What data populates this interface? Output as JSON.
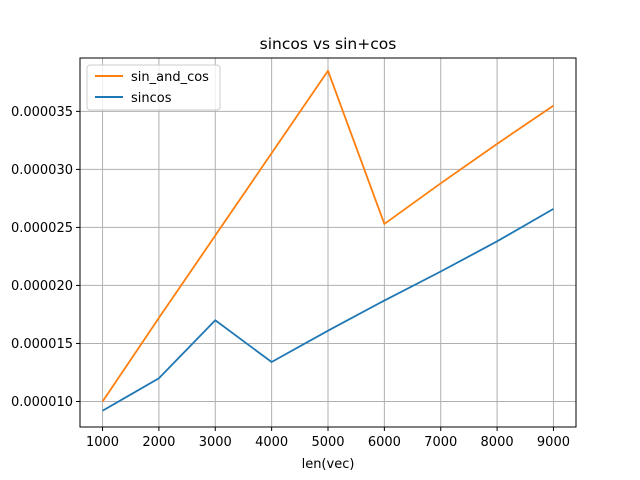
{
  "chart_data": {
    "type": "line",
    "title": "sincos vs sin+cos",
    "xlabel": "len(vec)",
    "ylabel": "",
    "grid": true,
    "legend_position": "top-left",
    "x": [
      1000,
      2000,
      3000,
      4000,
      5000,
      6000,
      7000,
      8000,
      9000
    ],
    "xticks": [
      "1000",
      "2000",
      "3000",
      "4000",
      "5000",
      "6000",
      "7000",
      "8000",
      "9000"
    ],
    "yticks": [
      1e-05,
      1.5e-05,
      2e-05,
      2.5e-05,
      3e-05,
      3.5e-05
    ],
    "yticklabels": [
      "0.000010",
      "0.000015",
      "0.000020",
      "0.000025",
      "0.000030",
      "0.000035"
    ],
    "xlim": [
      600,
      9400
    ],
    "ylim": [
      7.8e-06,
      3.96e-05
    ],
    "series": [
      {
        "name": "sin_and_cos",
        "color": "#ff7f0e",
        "values": [
          1e-05,
          1.72e-05,
          2.43e-05,
          3.14e-05,
          3.85e-05,
          2.53e-05,
          2.88e-05,
          3.22e-05,
          3.55e-05
        ]
      },
      {
        "name": "sincos",
        "color": "#1f77b4",
        "values": [
          9.2e-06,
          1.2e-05,
          1.7e-05,
          1.34e-05,
          1.61e-05,
          1.87e-05,
          2.12e-05,
          2.38e-05,
          2.66e-05
        ]
      }
    ]
  }
}
